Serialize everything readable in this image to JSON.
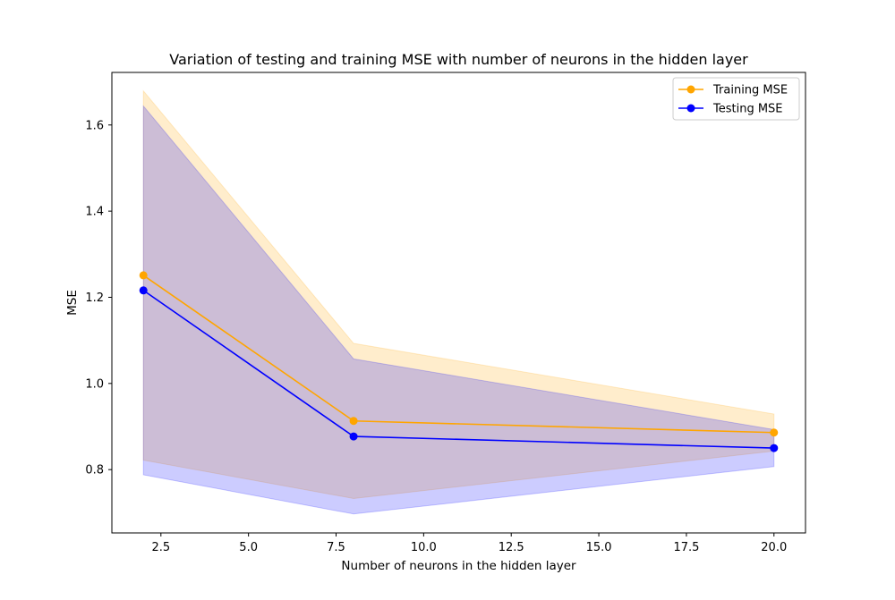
{
  "chart_data": {
    "type": "line",
    "title": "Variation of testing and training MSE with number of neurons in the hidden layer",
    "xlabel": "Number of neurons in the hidden layer",
    "ylabel": "MSE",
    "xlim": [
      1.1,
      20.9
    ],
    "ylim": [
      0.653,
      1.722
    ],
    "xticks": [
      2.5,
      5.0,
      7.5,
      10.0,
      12.5,
      15.0,
      17.5,
      20.0
    ],
    "xtick_labels": [
      "2.5",
      "5.0",
      "7.5",
      "10.0",
      "12.5",
      "15.0",
      "17.5",
      "20.0"
    ],
    "yticks": [
      0.8,
      1.0,
      1.2,
      1.4,
      1.6
    ],
    "ytick_labels": [
      "0.8",
      "1.0",
      "1.2",
      "1.4",
      "1.6"
    ],
    "grid": false,
    "legend_position": "top-right",
    "x": [
      2,
      8,
      20
    ],
    "series": [
      {
        "name": "Training MSE",
        "color": "#ffa500",
        "values": [
          1.251,
          0.913,
          0.886
        ],
        "band_upper": [
          1.679,
          1.093,
          0.929
        ],
        "band_lower": [
          0.822,
          0.733,
          0.843
        ]
      },
      {
        "name": "Testing MSE",
        "color": "#0000ff",
        "values": [
          1.216,
          0.877,
          0.85
        ],
        "band_upper": [
          1.644,
          1.057,
          0.893
        ],
        "band_lower": [
          0.788,
          0.697,
          0.807
        ]
      }
    ]
  }
}
